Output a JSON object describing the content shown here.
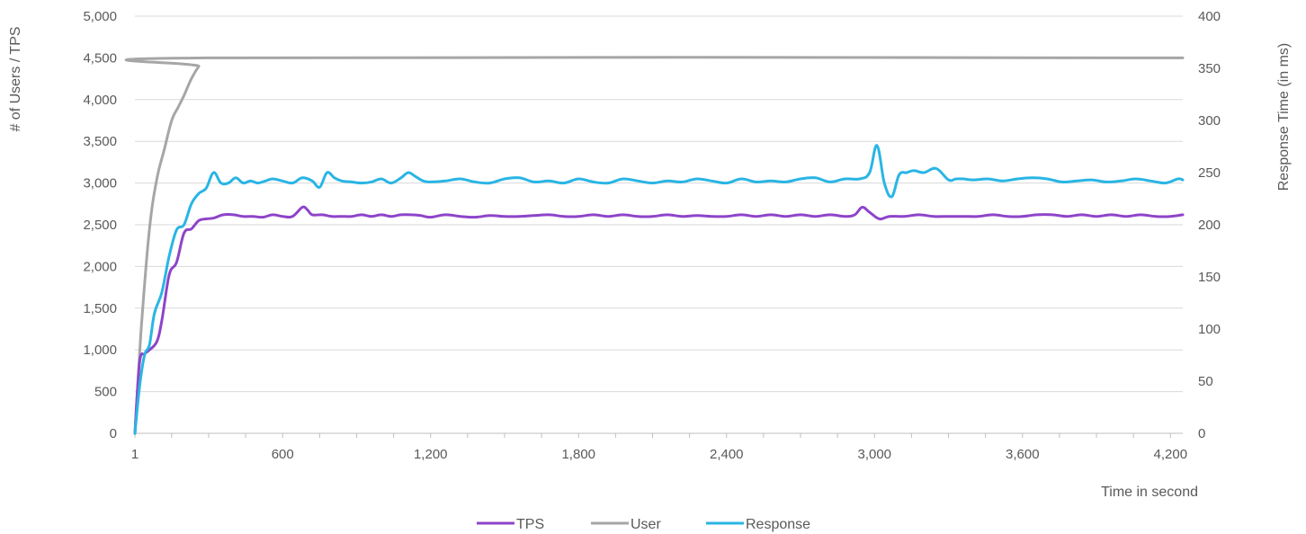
{
  "chart_data": {
    "type": "line",
    "xlabel": "Time in second",
    "ylabel_left": "# of Users / TPS",
    "ylabel_right": "Response Time (in ms)",
    "x_ticks": [
      1,
      600,
      1200,
      1800,
      2400,
      3000,
      3600,
      4200
    ],
    "x_tick_labels": [
      "1",
      "600",
      "1,200",
      "1,800",
      "2,400",
      "3,000",
      "3,600",
      "4,200"
    ],
    "xlim": [
      1,
      4250
    ],
    "ylim_left": [
      0,
      5000
    ],
    "y_ticks_left": [
      0,
      500,
      1000,
      1500,
      2000,
      2500,
      3000,
      3500,
      4000,
      4500,
      5000
    ],
    "y_tick_labels_left": [
      "0",
      "500",
      "1,000",
      "1,500",
      "2,000",
      "2,500",
      "3,000",
      "3,500",
      "4,000",
      "4,500",
      "5,000"
    ],
    "ylim_right": [
      0,
      400
    ],
    "y_ticks_right": [
      0,
      50,
      100,
      150,
      200,
      250,
      300,
      350,
      400
    ],
    "y_tick_labels_right": [
      "0",
      "50",
      "100",
      "150",
      "200",
      "250",
      "300",
      "350",
      "400"
    ],
    "grid": true,
    "legend_position": "bottom",
    "series": [
      {
        "name": "TPS",
        "axis": "left",
        "color": "#8E44C9",
        "x": [
          1,
          20,
          40,
          60,
          90,
          110,
          140,
          170,
          200,
          230,
          260,
          290,
          320,
          360,
          400,
          440,
          480,
          520,
          560,
          600,
          640,
          680,
          700,
          720,
          760,
          800,
          840,
          880,
          920,
          960,
          1000,
          1040,
          1080,
          1120,
          1160,
          1200,
          1260,
          1320,
          1380,
          1440,
          1500,
          1560,
          1620,
          1680,
          1740,
          1800,
          1860,
          1920,
          1980,
          2040,
          2100,
          2160,
          2220,
          2280,
          2340,
          2400,
          2460,
          2520,
          2580,
          2640,
          2700,
          2760,
          2820,
          2880,
          2920,
          2950,
          2980,
          3020,
          3060,
          3120,
          3180,
          3240,
          3300,
          3360,
          3420,
          3480,
          3540,
          3600,
          3660,
          3720,
          3780,
          3840,
          3900,
          3960,
          4020,
          4080,
          4140,
          4200,
          4250
        ],
        "y": [
          0,
          850,
          950,
          1000,
          1100,
          1350,
          1900,
          2050,
          2400,
          2450,
          2550,
          2570,
          2580,
          2620,
          2620,
          2600,
          2600,
          2590,
          2620,
          2600,
          2600,
          2710,
          2680,
          2620,
          2620,
          2600,
          2600,
          2600,
          2620,
          2600,
          2620,
          2600,
          2620,
          2620,
          2610,
          2590,
          2620,
          2600,
          2590,
          2610,
          2600,
          2600,
          2610,
          2620,
          2600,
          2600,
          2620,
          2600,
          2620,
          2600,
          2600,
          2620,
          2600,
          2610,
          2600,
          2600,
          2620,
          2600,
          2620,
          2600,
          2620,
          2600,
          2620,
          2600,
          2620,
          2710,
          2650,
          2570,
          2600,
          2600,
          2620,
          2600,
          2600,
          2600,
          2600,
          2620,
          2600,
          2600,
          2620,
          2620,
          2600,
          2620,
          2600,
          2620,
          2600,
          2620,
          2600,
          2600,
          2620
        ]
      },
      {
        "name": "User",
        "axis": "left",
        "color": "#A6A6A6",
        "x": [
          1,
          15,
          30,
          60,
          90,
          120,
          150,
          175,
          200,
          230,
          260,
          290,
          4250
        ],
        "y": [
          0,
          700,
          1400,
          2450,
          3050,
          3400,
          3750,
          3900,
          4050,
          4250,
          4400,
          4500,
          4500
        ]
      },
      {
        "name": "Response",
        "axis": "right",
        "color": "#29B5E4",
        "x": [
          1,
          20,
          40,
          60,
          80,
          110,
          140,
          170,
          200,
          230,
          260,
          290,
          320,
          350,
          380,
          410,
          440,
          470,
          500,
          530,
          560,
          600,
          640,
          680,
          720,
          750,
          780,
          810,
          840,
          880,
          920,
          960,
          1000,
          1040,
          1080,
          1110,
          1140,
          1170,
          1200,
          1260,
          1320,
          1380,
          1440,
          1500,
          1560,
          1620,
          1680,
          1740,
          1800,
          1860,
          1920,
          1980,
          2040,
          2100,
          2160,
          2220,
          2280,
          2340,
          2400,
          2460,
          2520,
          2580,
          2640,
          2700,
          2760,
          2820,
          2880,
          2940,
          2980,
          3010,
          3040,
          3070,
          3100,
          3130,
          3160,
          3200,
          3250,
          3300,
          3330,
          3360,
          3400,
          3460,
          3520,
          3580,
          3640,
          3700,
          3760,
          3820,
          3880,
          3940,
          4000,
          4060,
          4120,
          4180,
          4230,
          4250
        ],
        "y": [
          0,
          45,
          75,
          85,
          115,
          135,
          170,
          195,
          200,
          220,
          230,
          235,
          250,
          240,
          240,
          245,
          240,
          242,
          240,
          242,
          244,
          242,
          240,
          245,
          242,
          236,
          250,
          245,
          242,
          241,
          240,
          241,
          244,
          240,
          245,
          250,
          246,
          242,
          241,
          242,
          244,
          241,
          240,
          244,
          245,
          241,
          242,
          240,
          244,
          241,
          240,
          244,
          242,
          240,
          242,
          241,
          244,
          242,
          240,
          244,
          241,
          242,
          241,
          244,
          245,
          241,
          244,
          244,
          250,
          276,
          240,
          227,
          248,
          250,
          252,
          250,
          254,
          243,
          244,
          244,
          243,
          244,
          242,
          244,
          245,
          244,
          241,
          242,
          243,
          241,
          242,
          244,
          242,
          240,
          244,
          243
        ]
      }
    ]
  }
}
